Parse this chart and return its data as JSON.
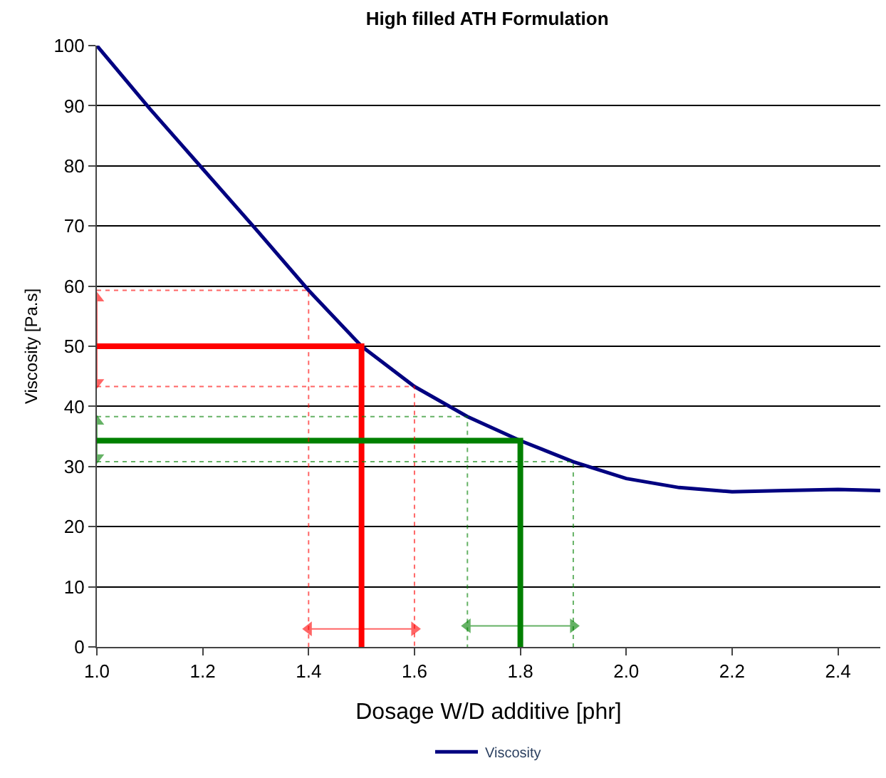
{
  "chart_data": {
    "type": "line",
    "title": "High filled ATH Formulation",
    "xlabel": "Dosage W/D additive [phr]",
    "ylabel": "Viscosity [Pa.s]",
    "xlim": [
      1.0,
      2.48
    ],
    "xticks": [
      {
        "value": 1.0,
        "label": "1.0"
      },
      1.2,
      1.4,
      1.6,
      1.8,
      {
        "value": 2.0,
        "label": "2.0"
      },
      2.2,
      2.4
    ],
    "ylim": [
      0,
      100
    ],
    "yticks": [
      0,
      10,
      20,
      30,
      40,
      50,
      60,
      70,
      80,
      90,
      100
    ],
    "grid": "y",
    "legend": "bottom",
    "marker": "none",
    "line_style": "solid",
    "series": [
      {
        "name": "Viscosity",
        "color": "#000080",
        "x": [
          1.0,
          1.1,
          1.2,
          1.3,
          1.4,
          1.5,
          1.6,
          1.7,
          1.8,
          1.9,
          2.0,
          2.1,
          2.2,
          2.3,
          2.4,
          2.48
        ],
        "values": [
          100,
          89.5,
          79.5,
          69.5,
          59.3,
          50,
          43.3,
          38.3,
          34.3,
          30.8,
          28,
          26.5,
          25.8,
          26,
          26.2,
          26
        ]
      },
      {
        "color": "#ff0000",
        "x": [
          1.0,
          1.5,
          1.5
        ],
        "values": [
          50,
          50,
          0
        ]
      },
      {
        "color": "#008000",
        "x": [
          1.0,
          1.8,
          1.8
        ],
        "values": [
          34.3,
          34.3,
          0
        ]
      },
      {
        "color": "#ff0000",
        "line_style": "dotted",
        "x": [
          1.0,
          1.4,
          1.4
        ],
        "values": [
          59.3,
          59.3,
          0
        ]
      },
      {
        "color": "#ff0000",
        "line_style": "dotted",
        "x": [
          1.0,
          1.6,
          1.6
        ],
        "values": [
          43.3,
          43.3,
          0
        ]
      },
      {
        "color": "#008000",
        "line_style": "dotted",
        "x": [
          1.0,
          1.7,
          1.7
        ],
        "values": [
          38.3,
          38.3,
          0
        ]
      },
      {
        "color": "#008000",
        "line_style": "dotted",
        "x": [
          1.0,
          1.9,
          1.9
        ],
        "values": [
          30.8,
          30.8,
          0
        ]
      },
      {
        "color": "#ff0000",
        "marker": "triangle",
        "x": [
          1.4,
          1.6
        ],
        "values": [
          3,
          3
        ]
      },
      {
        "color": "#008000",
        "marker": "triangle",
        "x": [
          1.7,
          1.9
        ],
        "values": [
          3.5,
          3.5
        ]
      },
      {
        "color": "#ff0000",
        "marker": "triangle",
        "x": [
          1.0,
          1.0
        ],
        "values": [
          44,
          58
        ]
      },
      {
        "color": "#008000",
        "marker": "triangle",
        "x": [
          1.0,
          1.0
        ],
        "values": [
          31.5,
          37.5
        ]
      }
    ]
  }
}
